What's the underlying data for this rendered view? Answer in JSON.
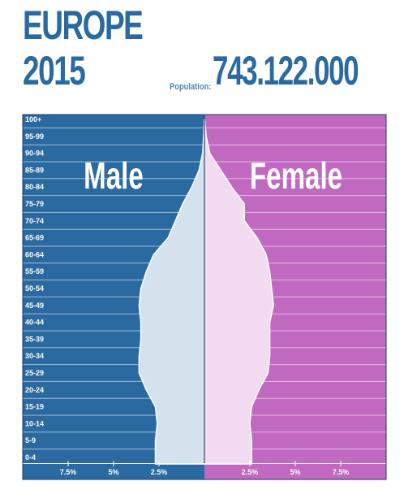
{
  "header": {
    "title_line1": "EUROPE",
    "title_line2": "2015",
    "population_label": "Population:",
    "population_value": "743.122.000"
  },
  "colors": {
    "male": "#2a6aa0",
    "female": "#c168c0",
    "male_fill": "#d4e2ee",
    "female_fill": "#f3dcf1",
    "title": "#2a6aa0"
  },
  "chart_data": {
    "type": "population_pyramid",
    "male_label": "Male",
    "female_label": "Female",
    "categories": [
      "0-4",
      "5-9",
      "10-14",
      "15-19",
      "20-24",
      "25-29",
      "30-34",
      "35-39",
      "40-44",
      "45-49",
      "50-54",
      "55-59",
      "60-64",
      "65-69",
      "70-74",
      "75-79",
      "80-84",
      "85-89",
      "90-94",
      "95-99",
      "100+"
    ],
    "series": [
      {
        "name": "Male",
        "values": [
          2.7,
          2.7,
          2.6,
          2.7,
          3.2,
          3.6,
          3.6,
          3.5,
          3.5,
          3.6,
          3.5,
          3.2,
          2.8,
          2.0,
          1.6,
          1.2,
          0.7,
          0.3,
          0.1,
          0.05,
          0.02
        ]
      },
      {
        "name": "Female",
        "values": [
          2.6,
          2.6,
          2.5,
          2.6,
          3.0,
          3.5,
          3.6,
          3.6,
          3.6,
          3.8,
          3.7,
          3.6,
          3.4,
          2.9,
          2.2,
          2.2,
          1.5,
          0.9,
          0.3,
          0.1,
          0.02
        ]
      }
    ],
    "x_ticks": [
      "7.5%",
      "5%",
      "2.5%",
      "2.5%",
      "5%",
      "7.5%"
    ],
    "x_tick_values": [
      -7.5,
      -5,
      -2.5,
      2.5,
      5,
      7.5
    ],
    "xlim": [
      -10,
      10
    ]
  }
}
